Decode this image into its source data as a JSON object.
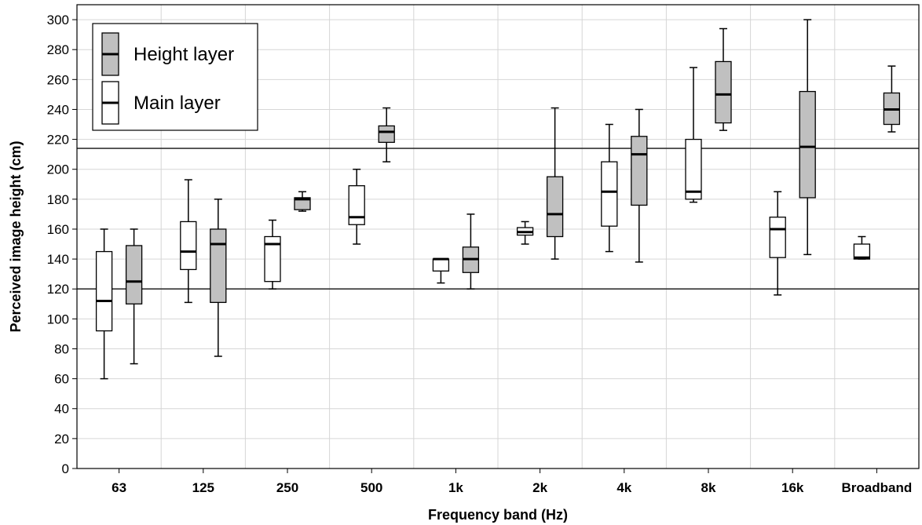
{
  "chart_data": {
    "type": "boxplot",
    "xlabel": "Frequency band (Hz)",
    "ylabel": "Perceived image height (cm)",
    "categories": [
      "63",
      "125",
      "250",
      "500",
      "1k",
      "2k",
      "4k",
      "8k",
      "16k",
      "Broadband"
    ],
    "ylim": [
      0,
      310
    ],
    "yticks": [
      0,
      20,
      40,
      60,
      80,
      100,
      120,
      140,
      160,
      180,
      200,
      220,
      240,
      260,
      280,
      300
    ],
    "grid": true,
    "legend_position": "top-left",
    "reference_lines": [
      120,
      214
    ],
    "series": [
      {
        "name": "Main layer",
        "color": "#ffffff",
        "boxes": [
          {
            "min": 60,
            "q1": 92,
            "median": 112,
            "q3": 145,
            "max": 160
          },
          {
            "min": 111,
            "q1": 133,
            "median": 145,
            "q3": 165,
            "max": 193
          },
          {
            "min": 120,
            "q1": 125,
            "median": 150,
            "q3": 155,
            "max": 166
          },
          {
            "min": 150,
            "q1": 163,
            "median": 168,
            "q3": 189,
            "max": 200
          },
          {
            "min": 124,
            "q1": 132,
            "median": 140,
            "q3": 140,
            "max": 140
          },
          {
            "min": 150,
            "q1": 156,
            "median": 158,
            "q3": 161,
            "max": 165
          },
          {
            "min": 145,
            "q1": 162,
            "median": 185,
            "q3": 205,
            "max": 230
          },
          {
            "min": 178,
            "q1": 180,
            "median": 185,
            "q3": 220,
            "max": 268
          },
          {
            "min": 116,
            "q1": 141,
            "median": 160,
            "q3": 168,
            "max": 185
          },
          {
            "min": 140,
            "q1": 140,
            "median": 141,
            "q3": 150,
            "max": 155
          }
        ]
      },
      {
        "name": "Height layer",
        "color": "#c0c0c0",
        "boxes": [
          {
            "min": 70,
            "q1": 110,
            "median": 125,
            "q3": 149,
            "max": 160
          },
          {
            "min": 75,
            "q1": 111,
            "median": 150,
            "q3": 160,
            "max": 180
          },
          {
            "min": 172,
            "q1": 173,
            "median": 180,
            "q3": 181,
            "max": 185
          },
          {
            "min": 205,
            "q1": 218,
            "median": 225,
            "q3": 229,
            "max": 241
          },
          {
            "min": 120,
            "q1": 131,
            "median": 140,
            "q3": 148,
            "max": 170
          },
          {
            "min": 140,
            "q1": 155,
            "median": 170,
            "q3": 195,
            "max": 241
          },
          {
            "min": 138,
            "q1": 176,
            "median": 210,
            "q3": 222,
            "max": 240
          },
          {
            "min": 226,
            "q1": 231,
            "median": 250,
            "q3": 272,
            "max": 294
          },
          {
            "min": 143,
            "q1": 181,
            "median": 215,
            "q3": 252,
            "max": 300
          },
          {
            "min": 225,
            "q1": 230,
            "median": 240,
            "q3": 251,
            "max": 269
          }
        ]
      }
    ],
    "legend": [
      {
        "label": "Height layer",
        "color": "#c0c0c0"
      },
      {
        "label": "Main layer",
        "color": "#ffffff"
      }
    ]
  }
}
